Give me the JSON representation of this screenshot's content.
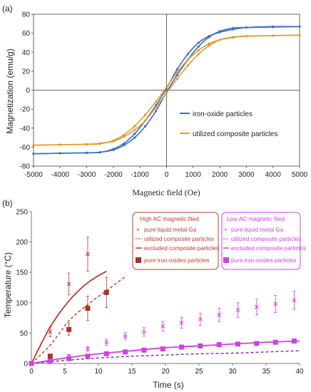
{
  "chart_data": [
    {
      "panel_label": "(a)",
      "type": "line",
      "xlabel": "Magnetic field (Oe)",
      "ylabel": "Magnetization (emu/g)",
      "xlim": [
        -5000,
        5000
      ],
      "ylim": [
        -80,
        80
      ],
      "xticks": [
        -5000,
        -4000,
        -3000,
        -2000,
        -1000,
        0,
        1000,
        2000,
        3000,
        4000,
        5000
      ],
      "yticks": [
        -80,
        -60,
        -40,
        -20,
        0,
        20,
        40,
        60,
        80
      ],
      "grid": false,
      "legend_position": "center-right",
      "colors": {
        "iron": "#3b6fc4",
        "composite": "#e09a2e"
      },
      "series": [
        {
          "name": "iron-oxide particles",
          "color": "#3b6fc4",
          "x": [
            -5000,
            -4000,
            -3000,
            -2500,
            -2000,
            -1600,
            -1200,
            -800,
            -400,
            0,
            400,
            800,
            1200,
            1600,
            2000,
            2500,
            3000,
            4000,
            5000
          ],
          "branch_up": [
            -67,
            -66.5,
            -66,
            -65.5,
            -62,
            -56,
            -46,
            -32,
            -16,
            2,
            22,
            38,
            50,
            57,
            61,
            64,
            66,
            67,
            67
          ],
          "branch_down": [
            -67,
            -66.5,
            -66,
            -65.5,
            -63,
            -58,
            -50,
            -38,
            -22,
            -2,
            16,
            32,
            46,
            56,
            62,
            65.5,
            66,
            66.5,
            67
          ]
        },
        {
          "name": "utilized composite particles",
          "color": "#e09a2e",
          "x": [
            -5000,
            -4000,
            -3000,
            -2500,
            -2000,
            -1600,
            -1200,
            -800,
            -400,
            0,
            400,
            800,
            1200,
            1600,
            2000,
            2500,
            3000,
            4000,
            5000
          ],
          "branch_up": [
            -58,
            -57.5,
            -57,
            -56.5,
            -53,
            -47,
            -38,
            -26,
            -12,
            3,
            19,
            32,
            42,
            49,
            53,
            55.5,
            57,
            57.5,
            58
          ],
          "branch_down": [
            -58,
            -57.5,
            -57,
            -56,
            -54,
            -49,
            -42,
            -32,
            -18,
            -3,
            12,
            26,
            38,
            47,
            53,
            56,
            57,
            57.5,
            58
          ]
        }
      ]
    },
    {
      "panel_label": "(b)",
      "type": "line",
      "xlabel": "Time (s)",
      "ylabel": "Temperature (°C)",
      "xlim": [
        0,
        40
      ],
      "ylim": [
        0,
        250
      ],
      "xticks": [
        0,
        5,
        10,
        15,
        20,
        25,
        30,
        35,
        40
      ],
      "yticks": [
        0,
        50,
        100,
        150,
        200,
        250
      ],
      "grid": false,
      "legends": [
        {
          "title": "High AC magnetic filed",
          "color": "#c0392b",
          "position": "top-center",
          "entries": [
            {
              "label": "pure liquid metal Ga",
              "marker": "x"
            },
            {
              "label": "utilized composite particles",
              "marker": "dashed-line"
            },
            {
              "label": "excluded composite particles",
              "marker": "solid-line"
            },
            {
              "label": "pure iron-oxides particles",
              "marker": "square"
            }
          ]
        },
        {
          "title": "Low AC magnetic filed",
          "color": "#d040e0",
          "position": "top-right",
          "entries": [
            {
              "label": "pure liquid metal Ga",
              "marker": "x"
            },
            {
              "label": "utilized composite particles",
              "marker": "dashed-line"
            },
            {
              "label": "excluded composite particles",
              "marker": "solid-line"
            },
            {
              "label": "pure iron-oxides particles",
              "marker": "square"
            }
          ]
        }
      ],
      "series": [
        {
          "name": "pure liquid metal Ga",
          "group": "High",
          "color": "#c0392b",
          "style": "x",
          "x": [
            0,
            2.8,
            5.6,
            8.4
          ],
          "y": [
            0,
            52,
            131,
            180
          ],
          "err": [
            0,
            8,
            18,
            28
          ]
        },
        {
          "name": "utilized composite particles",
          "group": "High",
          "color": "#c0392b",
          "style": "dashed",
          "x": [
            0,
            2.8,
            5.6,
            8.4,
            11.2,
            14
          ],
          "y": [
            0,
            30,
            70,
            97,
            120,
            143
          ]
        },
        {
          "name": "excluded composite particles",
          "group": "High",
          "color": "#c0392b",
          "style": "solid",
          "x": [
            0,
            2.8,
            5.6,
            8.4,
            11.2
          ],
          "y": [
            0,
            60,
            103,
            133,
            152
          ]
        },
        {
          "name": "pure iron-oxides particles",
          "group": "High",
          "color": "#a93226",
          "style": "square",
          "x": [
            0,
            2.8,
            5.6,
            8.4,
            11.2
          ],
          "y": [
            0,
            12,
            56,
            91,
            117
          ],
          "err": [
            0,
            3,
            10,
            20,
            25
          ]
        },
        {
          "name": "pure liquid metal Ga",
          "group": "Low",
          "color": "#d040e0",
          "style": "x",
          "x": [
            0,
            2.8,
            5.6,
            8.4,
            11.2,
            14,
            16.8,
            19.6,
            22.4,
            25.2,
            28,
            30.8,
            33.6,
            36.4,
            39.2
          ],
          "y": [
            0,
            4,
            12,
            24,
            35,
            45,
            52,
            61,
            67,
            73,
            80,
            88,
            93,
            98,
            104
          ],
          "err": [
            0,
            2,
            3,
            4,
            5,
            6,
            7,
            8,
            9,
            10,
            11,
            12,
            13,
            14,
            15
          ]
        },
        {
          "name": "utilized composite particles",
          "group": "Low",
          "color": "#7a2aa0",
          "style": "dashed",
          "x": [
            0,
            5,
            10,
            15,
            20,
            25,
            30,
            35,
            40
          ],
          "y": [
            0,
            5,
            9,
            12,
            14,
            16,
            17,
            19,
            21
          ]
        },
        {
          "name": "excluded composite particles",
          "group": "Low",
          "color": "#d040e0",
          "style": "solid",
          "x": [
            0,
            5,
            10,
            15,
            20,
            25,
            30,
            35,
            40
          ],
          "y": [
            0,
            9,
            16,
            21,
            26,
            29,
            32,
            35,
            37
          ]
        },
        {
          "name": "pure iron-oxides particles",
          "group": "Low",
          "color": "#d040e0",
          "style": "square",
          "x": [
            0,
            2.8,
            5.6,
            8.4,
            11.2,
            14,
            16.8,
            19.6,
            22.4,
            25.2,
            28,
            30.8,
            33.6,
            36.4,
            39.2
          ],
          "y": [
            0,
            4,
            8,
            12,
            16,
            19,
            22,
            24,
            27,
            29,
            31,
            32,
            33,
            35,
            37
          ]
        }
      ]
    }
  ]
}
